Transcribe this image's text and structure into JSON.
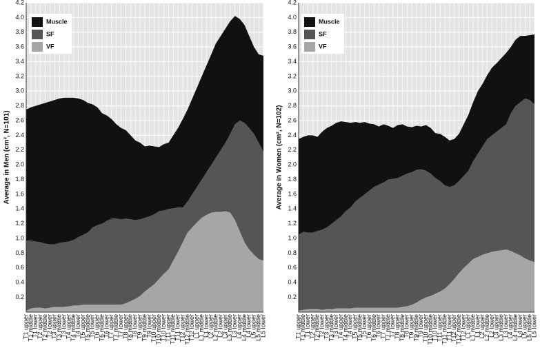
{
  "chart_data": [
    {
      "type": "area",
      "stacked": true,
      "y_label": "Average in Men (cm², N=101)",
      "legend": "top-left",
      "grid": true,
      "categories": [
        "T1 upper",
        "T1 middle",
        "T1 lower",
        "T2 upper",
        "T2 middle",
        "T2 lower",
        "T3 upper",
        "T3 middle",
        "T3 lower",
        "T4 upper",
        "T4 middle",
        "T4 lower",
        "T5 upper",
        "T5 middle",
        "T5 lower",
        "T6 upper",
        "T6 middle",
        "T6 lower",
        "T7 upper",
        "T7 middle",
        "T7 lower",
        "T8 upper",
        "T8 middle",
        "T8 lower",
        "T9 upper",
        "T9 middle",
        "T9 lower",
        "T10 upper",
        "T10 middle",
        "T10 lower",
        "T11 upper",
        "T11 middle",
        "T11 lower",
        "T12 upper",
        "T12 middle",
        "T12 lower",
        "L1 upper",
        "L1 middle",
        "L1 lower",
        "L2 upper",
        "L2 middle",
        "L2 lower",
        "L3 upper",
        "L3 middle",
        "L3 lower",
        "L4 upper",
        "L4 middle",
        "L4 lower",
        "L5 upper",
        "L5 middle",
        "L5 lower"
      ],
      "ylim": [
        0,
        4.2
      ],
      "yticks": [
        0.2,
        0.4,
        0.6,
        0.8,
        {
          "value": 1,
          "label": "1.0"
        },
        1.2,
        1.4,
        1.6,
        1.8,
        {
          "value": 2,
          "label": "2.0"
        },
        2.2,
        2.4,
        2.6,
        2.8,
        {
          "value": 3,
          "label": "3.0"
        },
        3.2,
        3.4,
        3.6,
        3.8,
        {
          "value": 4,
          "label": "4.0"
        },
        4.2
      ],
      "series": [
        {
          "name": "Muscle",
          "color": "#111111",
          "values": [
            1.78,
            1.81,
            1.84,
            1.87,
            1.91,
            1.94,
            1.96,
            1.96,
            1.96,
            1.95,
            1.93,
            1.88,
            1.83,
            1.76,
            1.67,
            1.6,
            1.5,
            1.43,
            1.35,
            1.28,
            1.24,
            1.2,
            1.14,
            1.08,
            1.04,
            0.97,
            0.96,
            0.92,
            0.87,
            0.9,
            0.9,
            0.99,
            1.08,
            1.2,
            1.25,
            1.3,
            1.35,
            1.4,
            1.45,
            1.5,
            1.55,
            1.55,
            1.55,
            1.53,
            1.47,
            1.38,
            1.33,
            1.25,
            1.18,
            1.2,
            1.3
          ]
        },
        {
          "name": "SF",
          "color": "#555555",
          "values": [
            0.95,
            0.92,
            0.9,
            0.89,
            0.88,
            0.86,
            0.85,
            0.87,
            0.88,
            0.88,
            0.89,
            0.93,
            0.95,
            0.98,
            1.05,
            1.08,
            1.1,
            1.14,
            1.17,
            1.17,
            1.16,
            1.15,
            1.11,
            1.07,
            1.04,
            1.0,
            0.97,
            0.95,
            0.92,
            0.86,
            0.82,
            0.71,
            0.6,
            0.47,
            0.42,
            0.45,
            0.48,
            0.52,
            0.58,
            0.65,
            0.74,
            0.84,
            0.93,
            1.07,
            1.3,
            1.5,
            1.62,
            1.65,
            1.64,
            1.58,
            1.48
          ]
        },
        {
          "name": "VF",
          "color": "#a6a6a6",
          "values": [
            0.02,
            0.05,
            0.06,
            0.06,
            0.05,
            0.06,
            0.07,
            0.07,
            0.07,
            0.08,
            0.09,
            0.09,
            0.1,
            0.1,
            0.1,
            0.1,
            0.1,
            0.1,
            0.1,
            0.1,
            0.1,
            0.12,
            0.15,
            0.18,
            0.22,
            0.28,
            0.33,
            0.38,
            0.45,
            0.52,
            0.58,
            0.7,
            0.82,
            0.95,
            1.08,
            1.15,
            1.22,
            1.28,
            1.32,
            1.35,
            1.36,
            1.36,
            1.37,
            1.35,
            1.25,
            1.1,
            0.95,
            0.85,
            0.78,
            0.72,
            0.7
          ]
        }
      ]
    },
    {
      "type": "area",
      "stacked": true,
      "y_label": "Average in Women (cm², N=102)",
      "legend": "top-left",
      "grid": true,
      "categories": [
        "T1 upper",
        "T1 middle",
        "T1 lower",
        "T2 upper",
        "T2 middle",
        "T2 lower",
        "T3 upper",
        "T3 middle",
        "T3 lower",
        "T4 upper",
        "T4 middle",
        "T4 lower",
        "T5 upper",
        "T5 middle",
        "T5 lower",
        "T6 upper",
        "T6 middle",
        "T6 lower",
        "T7 upper",
        "T7 middle",
        "T7 lower",
        "T8 upper",
        "T8 middle",
        "T8 lower",
        "T9 upper",
        "T9 middle",
        "T9 lower",
        "T10 upper",
        "T10 middle",
        "T10 lower",
        "T11 upper",
        "T11 middle",
        "T11 lower",
        "T12 upper",
        "T12 middle",
        "T12 lower",
        "L1 upper",
        "L1 middle",
        "L1 lower",
        "L2 upper",
        "L2 middle",
        "L2 lower",
        "L3 upper",
        "L3 middle",
        "L3 lower",
        "L4 upper",
        "L4 middle",
        "L4 lower",
        "L5 upper",
        "L5 middle",
        "L5 lower"
      ],
      "ylim": [
        0,
        4.2
      ],
      "yticks": [
        0.2,
        0.4,
        0.6,
        0.8,
        {
          "value": 1,
          "label": "1.0"
        },
        1.2,
        1.4,
        1.6,
        1.8,
        {
          "value": 2,
          "label": "2.0"
        },
        2.2,
        2.4,
        2.6,
        2.8,
        {
          "value": 3,
          "label": "3.0"
        },
        3.2,
        3.4,
        3.6,
        3.8,
        {
          "value": 4,
          "label": "4.0"
        },
        4.2
      ],
      "series": [
        {
          "name": "Muscle",
          "color": "#111111",
          "values": [
            1.3,
            1.29,
            1.32,
            1.32,
            1.28,
            1.33,
            1.35,
            1.33,
            1.32,
            1.29,
            1.21,
            1.15,
            1.08,
            1.02,
            0.98,
            0.91,
            0.85,
            0.79,
            0.79,
            0.73,
            0.69,
            0.72,
            0.7,
            0.64,
            0.61,
            0.6,
            0.58,
            0.62,
            0.62,
            0.61,
            0.64,
            0.66,
            0.63,
            0.63,
            0.64,
            0.7,
            0.76,
            0.8,
            0.85,
            0.85,
            0.87,
            0.92,
            0.93,
            0.95,
            0.97,
            0.9,
            0.9,
            0.9,
            0.85,
            0.88,
            0.95
          ]
        },
        {
          "name": "SF",
          "color": "#555555",
          "values": [
            1.03,
            1.06,
            1.04,
            1.04,
            1.06,
            1.09,
            1.11,
            1.16,
            1.2,
            1.25,
            1.32,
            1.37,
            1.44,
            1.49,
            1.54,
            1.59,
            1.64,
            1.67,
            1.7,
            1.74,
            1.75,
            1.76,
            1.78,
            1.8,
            1.8,
            1.8,
            1.77,
            1.72,
            1.66,
            1.57,
            1.5,
            1.4,
            1.32,
            1.27,
            1.25,
            1.25,
            1.26,
            1.33,
            1.4,
            1.47,
            1.55,
            1.58,
            1.62,
            1.66,
            1.7,
            1.87,
            2.0,
            2.08,
            2.17,
            2.18,
            2.14
          ]
        },
        {
          "name": "VF",
          "color": "#a6a6a6",
          "values": [
            0.02,
            0.03,
            0.04,
            0.04,
            0.04,
            0.03,
            0.04,
            0.04,
            0.05,
            0.05,
            0.05,
            0.05,
            0.06,
            0.06,
            0.06,
            0.06,
            0.06,
            0.06,
            0.06,
            0.06,
            0.06,
            0.06,
            0.07,
            0.08,
            0.1,
            0.13,
            0.17,
            0.2,
            0.22,
            0.25,
            0.28,
            0.32,
            0.38,
            0.45,
            0.53,
            0.6,
            0.66,
            0.72,
            0.75,
            0.78,
            0.8,
            0.82,
            0.83,
            0.84,
            0.85,
            0.83,
            0.8,
            0.77,
            0.73,
            0.7,
            0.68
          ]
        }
      ]
    }
  ]
}
